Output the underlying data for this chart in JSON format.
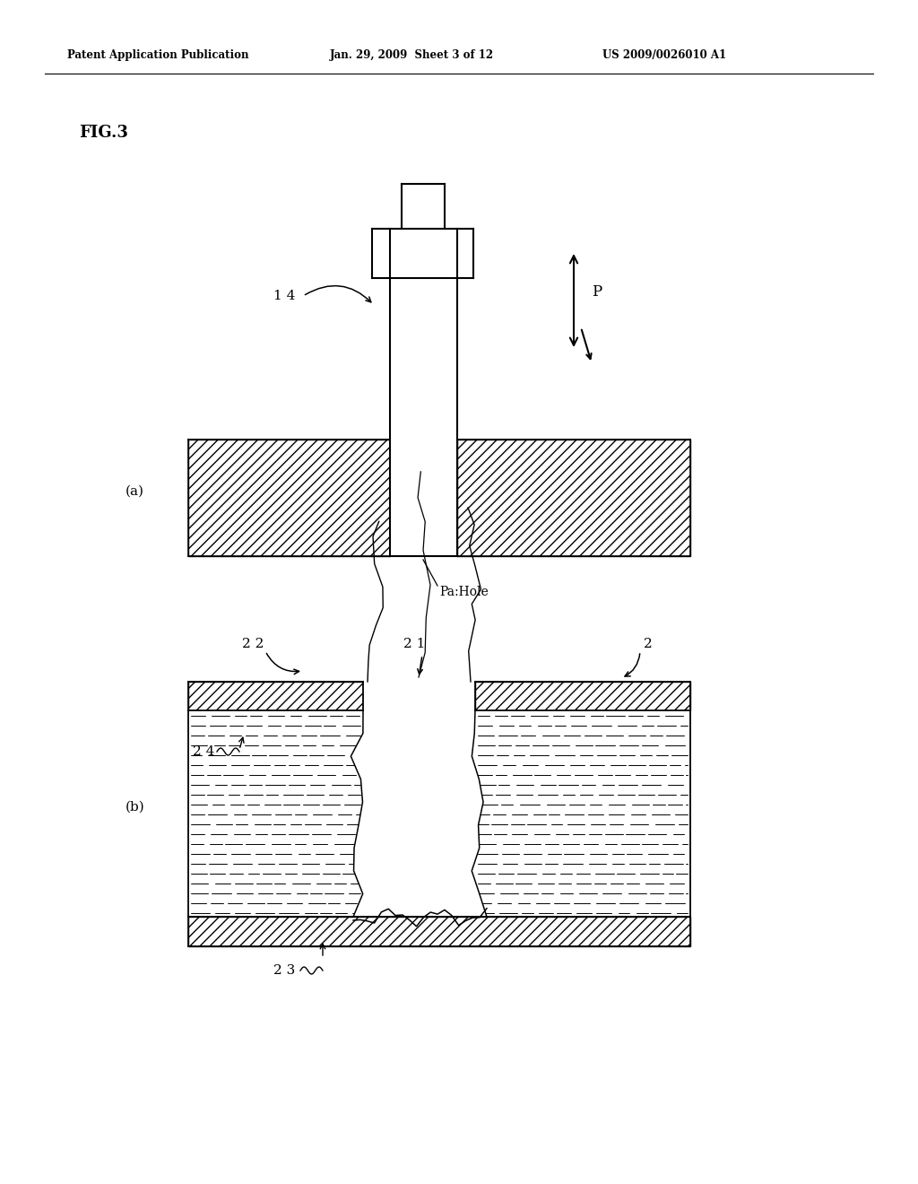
{
  "bg_color": "#ffffff",
  "header_left": "Patent Application Publication",
  "header_mid": "Jan. 29, 2009  Sheet 3 of 12",
  "header_right": "US 2009/0026010 A1",
  "fig_label": "FIG.3",
  "label_a": "(a)",
  "label_b": "(b)",
  "label_14": "1 4",
  "label_P": "P",
  "label_Pa": "Pa:Hole",
  "label_22": "2 2",
  "label_21": "2 1",
  "label_2": "2",
  "label_24": "2 4",
  "label_23": "2 3"
}
